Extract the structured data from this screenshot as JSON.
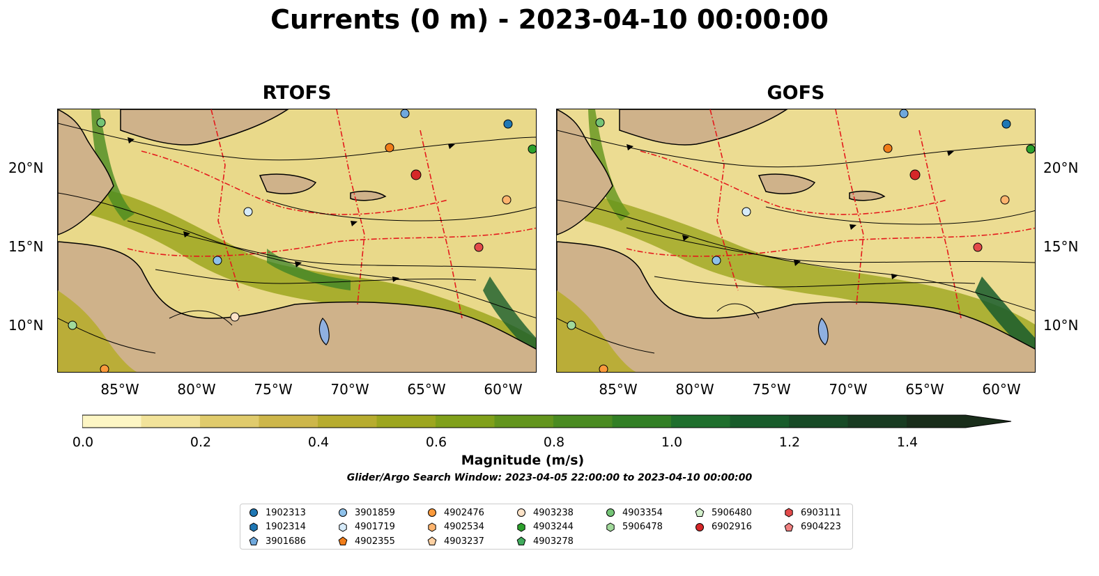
{
  "title": "Currents (0 m) - 2023-04-10 00:00:00",
  "panels": [
    {
      "title": "RTOFS"
    },
    {
      "title": "GOFS"
    }
  ],
  "lat_labels": [
    "20°N",
    "15°N",
    "10°N"
  ],
  "lon_labels": [
    "85°W",
    "80°W",
    "75°W",
    "70°W",
    "65°W",
    "60°W"
  ],
  "colorbar": {
    "label": "Magnitude (m/s)",
    "ticks": [
      "0.0",
      "0.2",
      "0.4",
      "0.6",
      "0.8",
      "1.0",
      "1.2",
      "1.4"
    ],
    "colors": [
      "#fdf6c4",
      "#f2e39a",
      "#e0cb6c",
      "#cdb64a",
      "#b7ac2f",
      "#9da61f",
      "#80a01a",
      "#63951d",
      "#4a8b21",
      "#327f25",
      "#1f6f2d",
      "#185c2b",
      "#174a26",
      "#183b21",
      "#192d1a"
    ]
  },
  "search_window": "Glider/Argo Search Window: 2023-04-05 22:00:00 to 2023-04-10 00:00:00",
  "legend": {
    "columns": [
      [
        {
          "id": "1902313",
          "marker": "circle",
          "color": "#1f77b4"
        },
        {
          "id": "1902314",
          "marker": "hexagon",
          "color": "#1f77b4"
        },
        {
          "id": "3901686",
          "marker": "pentagon",
          "color": "#6fa8dc"
        }
      ],
      [
        {
          "id": "3901859",
          "marker": "circle",
          "color": "#8ec1ea"
        },
        {
          "id": "4901719",
          "marker": "hexagon",
          "color": "#d6ebfa"
        },
        {
          "id": "4902355",
          "marker": "pentagon",
          "color": "#f07d1a"
        }
      ],
      [
        {
          "id": "4902476",
          "marker": "circle",
          "color": "#fb9a3c"
        },
        {
          "id": "4902534",
          "marker": "hexagon",
          "color": "#fdb46e"
        },
        {
          "id": "4903237",
          "marker": "pentagon",
          "color": "#fdd0a2"
        }
      ],
      [
        {
          "id": "4903238",
          "marker": "circle",
          "color": "#fde3c8"
        },
        {
          "id": "4903244",
          "marker": "hexagon",
          "color": "#2ca02c"
        },
        {
          "id": "4903278",
          "marker": "pentagon",
          "color": "#41ab5d"
        }
      ],
      [
        {
          "id": "4903354",
          "marker": "circle",
          "color": "#74c476"
        },
        {
          "id": "5906478",
          "marker": "hexagon",
          "color": "#a1d99b"
        }
      ],
      [
        {
          "id": "5906480",
          "marker": "pentagon",
          "color": "#d3f0cc"
        },
        {
          "id": "6902916",
          "marker": "circle",
          "color": "#d62728"
        }
      ],
      [
        {
          "id": "6903111",
          "marker": "hexagon",
          "color": "#e34a4a"
        },
        {
          "id": "6904223",
          "marker": "pentagon",
          "color": "#f08080"
        }
      ]
    ]
  }
}
